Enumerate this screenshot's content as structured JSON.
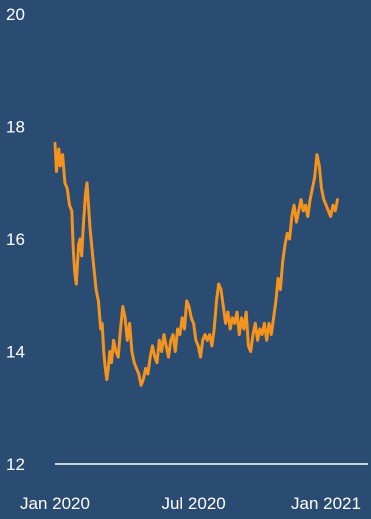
{
  "colors": {
    "background": "#2b4c72",
    "series_line": "#f4931e",
    "axis_line": "#ffffff",
    "text": "#ffffff"
  },
  "chart_data": {
    "type": "line",
    "title": "",
    "xlabel": "",
    "ylabel": "",
    "ylim": [
      12,
      20
    ],
    "yticks": [
      12,
      14,
      16,
      18,
      20
    ],
    "ytick_labels": [
      "12",
      "14",
      "16",
      "18",
      "20"
    ],
    "xlim": [
      "2020-01-01",
      "2021-02-15"
    ],
    "xticks": [
      "2020-01-01",
      "2020-07-01",
      "2021-01-01"
    ],
    "xtick_labels": [
      "Jan 2020",
      "Jul 2020",
      "Jan 2021"
    ],
    "grid": false,
    "legend": "none",
    "series": [
      {
        "points": [
          [
            "2020-01-01",
            17.7
          ],
          [
            "2020-01-03",
            17.2
          ],
          [
            "2020-01-06",
            17.6
          ],
          [
            "2020-01-08",
            17.3
          ],
          [
            "2020-01-11",
            17.5
          ],
          [
            "2020-01-14",
            17.0
          ],
          [
            "2020-01-17",
            16.9
          ],
          [
            "2020-01-20",
            16.6
          ],
          [
            "2020-01-23",
            16.5
          ],
          [
            "2020-01-25",
            15.8
          ],
          [
            "2020-01-27",
            15.4
          ],
          [
            "2020-01-29",
            15.2
          ],
          [
            "2020-02-01",
            15.9
          ],
          [
            "2020-02-03",
            16.0
          ],
          [
            "2020-02-05",
            15.7
          ],
          [
            "2020-02-07",
            16.2
          ],
          [
            "2020-02-10",
            16.8
          ],
          [
            "2020-02-12",
            17.0
          ],
          [
            "2020-02-14",
            16.6
          ],
          [
            "2020-02-16",
            16.2
          ],
          [
            "2020-02-18",
            15.9
          ],
          [
            "2020-02-21",
            15.5
          ],
          [
            "2020-02-24",
            15.1
          ],
          [
            "2020-02-27",
            14.9
          ],
          [
            "2020-03-01",
            14.4
          ],
          [
            "2020-03-03",
            14.5
          ],
          [
            "2020-03-05",
            14.0
          ],
          [
            "2020-03-07",
            13.7
          ],
          [
            "2020-03-09",
            13.5
          ],
          [
            "2020-03-11",
            13.7
          ],
          [
            "2020-03-13",
            14.0
          ],
          [
            "2020-03-15",
            13.8
          ],
          [
            "2020-03-18",
            14.2
          ],
          [
            "2020-03-21",
            14.0
          ],
          [
            "2020-03-24",
            13.9
          ],
          [
            "2020-03-27",
            14.4
          ],
          [
            "2020-03-30",
            14.8
          ],
          [
            "2020-04-02",
            14.6
          ],
          [
            "2020-04-05",
            14.2
          ],
          [
            "2020-04-08",
            14.5
          ],
          [
            "2020-04-11",
            14.0
          ],
          [
            "2020-04-14",
            13.8
          ],
          [
            "2020-04-17",
            13.7
          ],
          [
            "2020-04-20",
            13.6
          ],
          [
            "2020-04-23",
            13.4
          ],
          [
            "2020-04-26",
            13.5
          ],
          [
            "2020-04-29",
            13.7
          ],
          [
            "2020-05-02",
            13.6
          ],
          [
            "2020-05-05",
            13.9
          ],
          [
            "2020-05-08",
            14.1
          ],
          [
            "2020-05-11",
            13.9
          ],
          [
            "2020-05-14",
            13.8
          ],
          [
            "2020-05-17",
            14.2
          ],
          [
            "2020-05-20",
            14.0
          ],
          [
            "2020-05-23",
            14.3
          ],
          [
            "2020-05-26",
            14.1
          ],
          [
            "2020-05-29",
            13.9
          ],
          [
            "2020-06-01",
            14.2
          ],
          [
            "2020-06-04",
            14.3
          ],
          [
            "2020-06-07",
            14.0
          ],
          [
            "2020-06-10",
            14.4
          ],
          [
            "2020-06-13",
            14.3
          ],
          [
            "2020-06-16",
            14.6
          ],
          [
            "2020-06-19",
            14.4
          ],
          [
            "2020-06-22",
            14.9
          ],
          [
            "2020-06-25",
            14.8
          ],
          [
            "2020-06-28",
            14.6
          ],
          [
            "2020-07-01",
            14.5
          ],
          [
            "2020-07-04",
            14.2
          ],
          [
            "2020-07-07",
            14.1
          ],
          [
            "2020-07-10",
            13.9
          ],
          [
            "2020-07-13",
            14.2
          ],
          [
            "2020-07-16",
            14.3
          ],
          [
            "2020-07-19",
            14.2
          ],
          [
            "2020-07-22",
            14.3
          ],
          [
            "2020-07-25",
            14.1
          ],
          [
            "2020-07-28",
            14.4
          ],
          [
            "2020-07-31",
            14.9
          ],
          [
            "2020-08-03",
            15.2
          ],
          [
            "2020-08-06",
            15.1
          ],
          [
            "2020-08-09",
            14.8
          ],
          [
            "2020-08-12",
            14.5
          ],
          [
            "2020-08-15",
            14.7
          ],
          [
            "2020-08-18",
            14.4
          ],
          [
            "2020-08-21",
            14.6
          ],
          [
            "2020-08-24",
            14.5
          ],
          [
            "2020-08-27",
            14.7
          ],
          [
            "2020-08-30",
            14.3
          ],
          [
            "2020-09-02",
            14.6
          ],
          [
            "2020-09-05",
            14.4
          ],
          [
            "2020-09-08",
            14.7
          ],
          [
            "2020-09-11",
            14.1
          ],
          [
            "2020-09-14",
            14.0
          ],
          [
            "2020-09-17",
            14.3
          ],
          [
            "2020-09-20",
            14.5
          ],
          [
            "2020-09-23",
            14.2
          ],
          [
            "2020-09-26",
            14.4
          ],
          [
            "2020-09-29",
            14.3
          ],
          [
            "2020-10-02",
            14.5
          ],
          [
            "2020-10-05",
            14.2
          ],
          [
            "2020-10-08",
            14.5
          ],
          [
            "2020-10-11",
            14.3
          ],
          [
            "2020-10-14",
            14.6
          ],
          [
            "2020-10-17",
            14.9
          ],
          [
            "2020-10-20",
            15.3
          ],
          [
            "2020-10-23",
            15.1
          ],
          [
            "2020-10-26",
            15.6
          ],
          [
            "2020-10-29",
            15.9
          ],
          [
            "2020-11-01",
            16.1
          ],
          [
            "2020-11-04",
            16.0
          ],
          [
            "2020-11-07",
            16.4
          ],
          [
            "2020-11-10",
            16.6
          ],
          [
            "2020-11-13",
            16.3
          ],
          [
            "2020-11-16",
            16.5
          ],
          [
            "2020-11-19",
            16.7
          ],
          [
            "2020-11-22",
            16.5
          ],
          [
            "2020-11-25",
            16.6
          ],
          [
            "2020-11-28",
            16.4
          ],
          [
            "2020-12-01",
            16.7
          ],
          [
            "2020-12-04",
            16.9
          ],
          [
            "2020-12-07",
            17.1
          ],
          [
            "2020-12-10",
            17.5
          ],
          [
            "2020-12-13",
            17.3
          ],
          [
            "2020-12-16",
            16.9
          ],
          [
            "2020-12-19",
            16.7
          ],
          [
            "2020-12-22",
            16.6
          ],
          [
            "2020-12-25",
            16.5
          ],
          [
            "2020-12-28",
            16.4
          ],
          [
            "2020-12-31",
            16.6
          ],
          [
            "2021-01-03",
            16.5
          ],
          [
            "2021-01-06",
            16.7
          ]
        ]
      }
    ]
  }
}
